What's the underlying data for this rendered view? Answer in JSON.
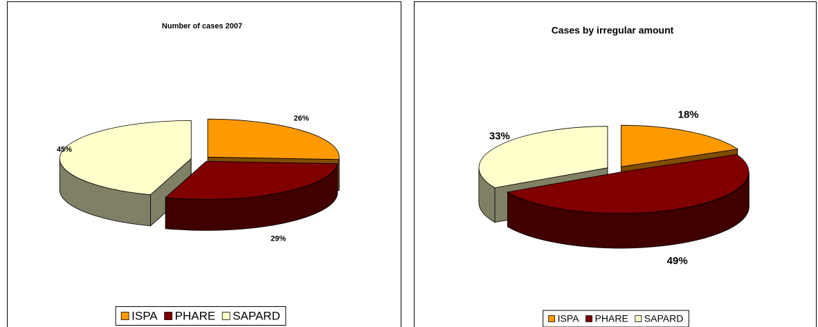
{
  "chart_data": [
    {
      "type": "pie",
      "title": "Number of cases 2007",
      "categories": [
        "ISPA",
        "PHARE",
        "SAPARD"
      ],
      "values": [
        26,
        29,
        45
      ],
      "value_labels": [
        "26%",
        "29%",
        "45%"
      ],
      "colors": [
        "#ff9900",
        "#800000",
        "#ffffcc"
      ],
      "legend": "bottom"
    },
    {
      "type": "pie",
      "title": "Cases by irregular amount",
      "categories": [
        "ISPA",
        "PHARE",
        "SAPARD"
      ],
      "values": [
        18,
        49,
        33
      ],
      "value_labels": [
        "18%",
        "49%",
        "33%"
      ],
      "colors": [
        "#ff9900",
        "#800000",
        "#ffffcc"
      ],
      "legend": "bottom"
    }
  ]
}
